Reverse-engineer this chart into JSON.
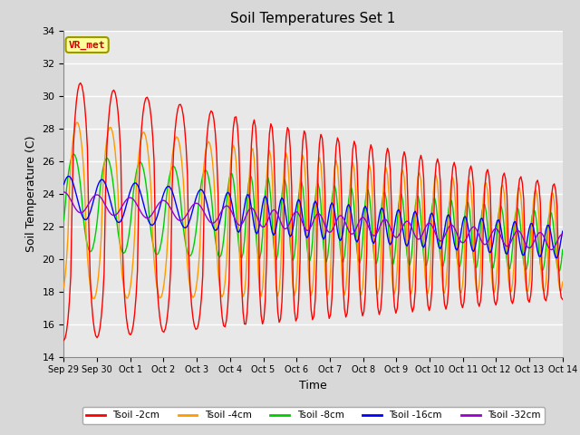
{
  "title": "Soil Temperatures Set 1",
  "xlabel": "Time",
  "ylabel": "Soil Temperature (C)",
  "ylim": [
    14,
    34
  ],
  "yticks": [
    14,
    16,
    18,
    20,
    22,
    24,
    26,
    28,
    30,
    32,
    34
  ],
  "x_labels": [
    "Sep 29",
    "Sep 30",
    "Oct 1",
    "Oct 2",
    "Oct 3",
    "Oct 4",
    "Oct 5",
    "Oct 6",
    "Oct 7",
    "Oct 8",
    "Oct 9",
    "Oct 10",
    "Oct 11",
    "Oct 12",
    "Oct 13",
    "Oct 14"
  ],
  "legend_labels": [
    "Tsoil -2cm",
    "Tsoil -4cm",
    "Tsoil -8cm",
    "Tsoil -16cm",
    "Tsoil -32cm"
  ],
  "colors": {
    "2cm": "#ff0000",
    "4cm": "#ff9900",
    "8cm": "#00cc00",
    "16cm": "#0000ff",
    "32cm": "#9900cc"
  },
  "annotation_text": "VR_met",
  "annotation_color": "#cc0000",
  "annotation_bg": "#ffff99",
  "annotation_border": "#999900",
  "background_color": "#e8e8e8",
  "grid_color": "#ffffff",
  "figsize": [
    6.4,
    4.8
  ],
  "dpi": 100
}
